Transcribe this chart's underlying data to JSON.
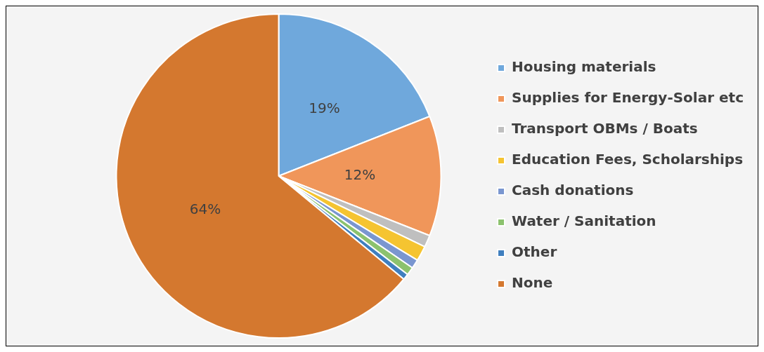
{
  "chart_data": {
    "type": "pie",
    "categories": [
      "Housing materials",
      "Supplies for Energy-Solar etc",
      "Transport OBMs / Boats",
      "Education Fees, Scholarships",
      "Cash donations",
      "Water / Sanitation",
      "Other",
      "None"
    ],
    "values": [
      19,
      12,
      1.2,
      1.5,
      0.9,
      0.8,
      0.6,
      64
    ],
    "colors": [
      "#6fa8dc",
      "#f0965a",
      "#bfbfbf",
      "#f5c431",
      "#7a96d0",
      "#8cc26e",
      "#3f7fbf",
      "#d4782f"
    ],
    "value_labels": [
      "19%",
      "12%",
      null,
      null,
      null,
      null,
      null,
      "64%"
    ],
    "legend": "right"
  }
}
